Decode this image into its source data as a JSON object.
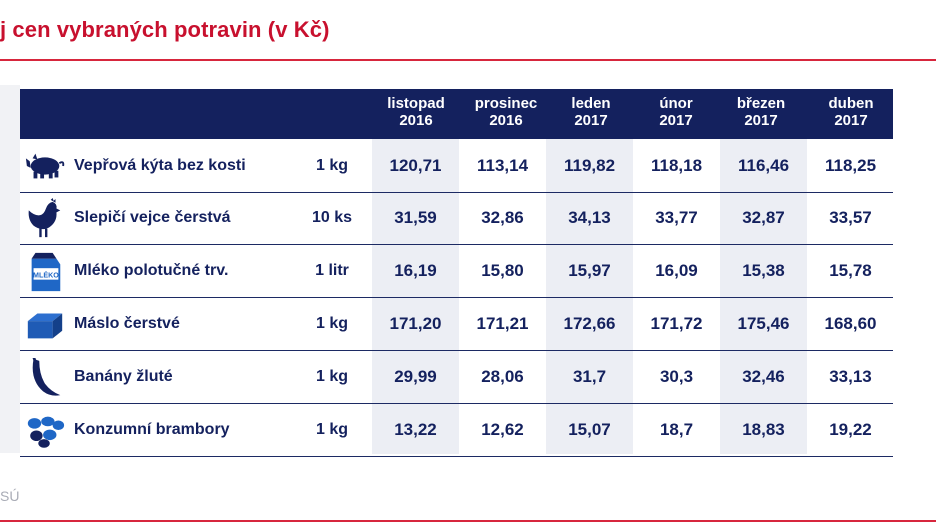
{
  "title": "j cen vybraných potravin (v Kč)",
  "source": "SÚ",
  "chart_data": {
    "type": "table",
    "title": "j cen vybraných potravin (v Kč)",
    "columns": [
      {
        "month": "listopad",
        "year": "2016"
      },
      {
        "month": "prosinec",
        "year": "2016"
      },
      {
        "month": "leden",
        "year": "2017"
      },
      {
        "month": "únor",
        "year": "2017"
      },
      {
        "month": "březen",
        "year": "2017"
      },
      {
        "month": "duben",
        "year": "2017"
      }
    ],
    "rows": [
      {
        "name": "Vepřová kýta bez kosti",
        "unit": "1 kg",
        "icon": "pig-icon",
        "values": [
          "120,71",
          "113,14",
          "119,82",
          "118,18",
          "116,46",
          "118,25"
        ]
      },
      {
        "name": "Slepičí vejce čerstvá",
        "unit": "10 ks",
        "icon": "hen-icon",
        "values": [
          "31,59",
          "32,86",
          "34,13",
          "33,77",
          "32,87",
          "33,57"
        ]
      },
      {
        "name": "Mléko polotučné trv.",
        "unit": "1 litr",
        "icon": "milk-carton-icon",
        "icon_text": "MLÉKO",
        "values": [
          "16,19",
          "15,80",
          "15,97",
          "16,09",
          "15,38",
          "15,78"
        ]
      },
      {
        "name": "Máslo čerstvé",
        "unit": "1 kg",
        "icon": "butter-icon",
        "values": [
          "171,20",
          "171,21",
          "172,66",
          "171,72",
          "175,46",
          "168,60"
        ]
      },
      {
        "name": "Banány žluté",
        "unit": "1 kg",
        "icon": "banana-icon",
        "values": [
          "29,99",
          "28,06",
          "31,7",
          "30,3",
          "32,46",
          "33,13"
        ]
      },
      {
        "name": "Konzumní brambory",
        "unit": "1 kg",
        "icon": "potatoes-icon",
        "values": [
          "13,22",
          "12,62",
          "15,07",
          "18,7",
          "18,83",
          "19,22"
        ]
      }
    ]
  },
  "colors": {
    "header_bg": "#14215e",
    "text": "#14215e",
    "accent": "#c8102e",
    "shade": "#eceef4"
  }
}
